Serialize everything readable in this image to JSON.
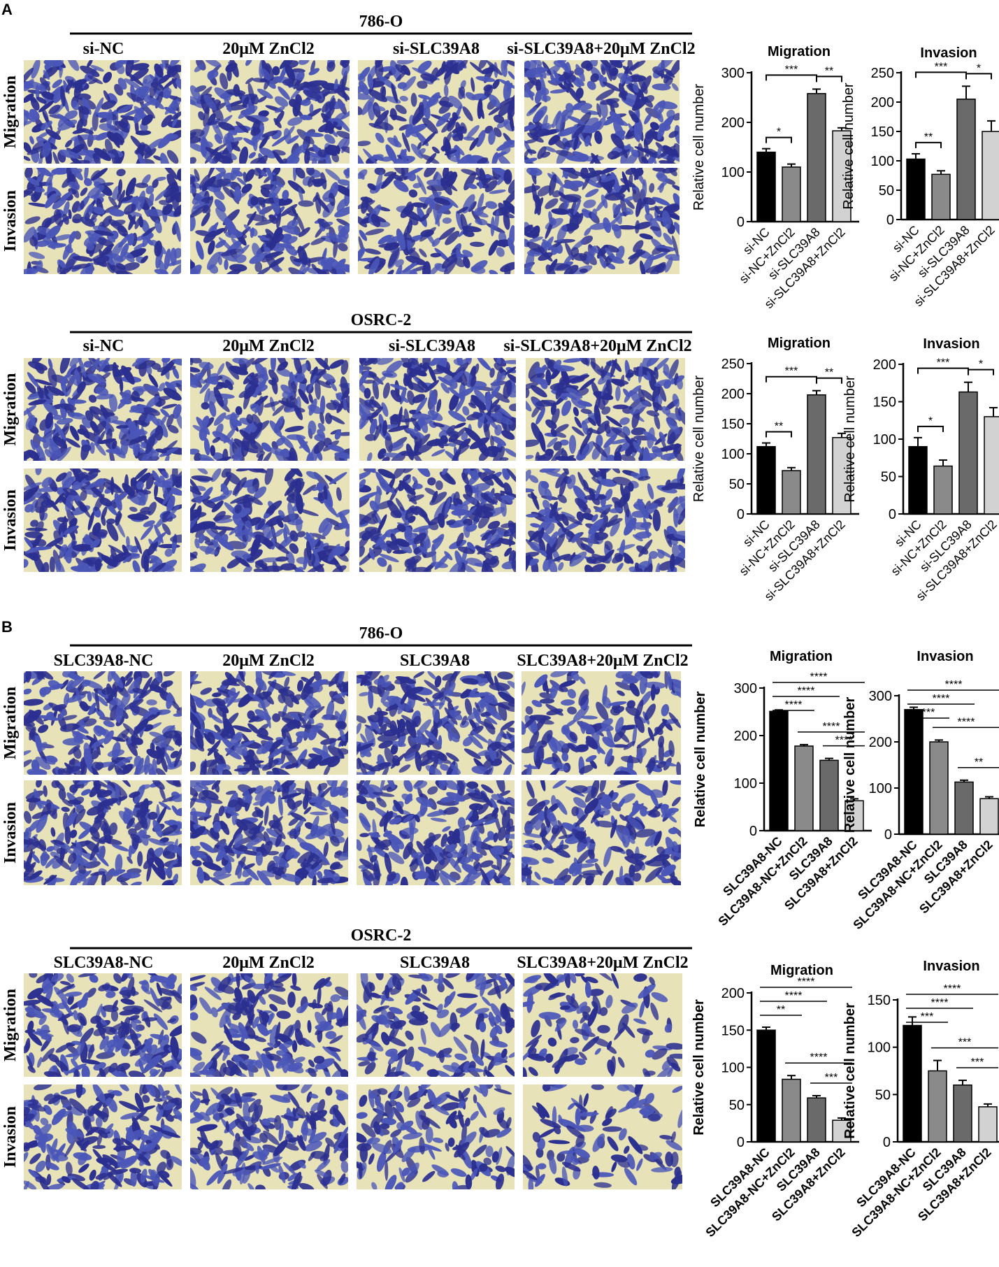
{
  "panel_labels": [
    "A",
    "B"
  ],
  "sections": [
    {
      "cell_line": "786-O",
      "conditions": [
        "si-NC",
        "20μM ZnCl2",
        "si-SLC39A8",
        "si-SLC39A8+20μM ZnCl2"
      ],
      "row_labels": [
        "Migration",
        "Invasion"
      ]
    },
    {
      "cell_line": "OSRC-2",
      "conditions": [
        "si-NC",
        "20μM ZnCl2",
        "si-SLC39A8",
        "si-SLC39A8+20μM ZnCl2"
      ],
      "row_labels": [
        "Migration",
        "Invasion"
      ]
    },
    {
      "cell_line": "786-O",
      "conditions": [
        "SLC39A8-NC",
        "20μM ZnCl2",
        "SLC39A8",
        "SLC39A8+20μM ZnCl2"
      ],
      "row_labels": [
        "Migration",
        "Invasion"
      ]
    },
    {
      "cell_line": "OSRC-2",
      "conditions": [
        "SLC39A8-NC",
        "20μM ZnCl2",
        "SLC39A8",
        "SLC39A8+20μM ZnCl2"
      ],
      "row_labels": [
        "Migration",
        "Invasion"
      ]
    }
  ],
  "colors": {
    "stain_dark": "#2b2f8f",
    "stain_mid": "#4a56b8",
    "membrane": "#e7e2b8",
    "bar_colors": [
      "#000000",
      "#8a8a8a",
      "#6a6a6a",
      "#d2d2d2"
    ]
  },
  "chart_data": [
    {
      "type": "bar",
      "title": "Migration",
      "ylabel": "Relative cell number",
      "ylim": [
        0,
        300
      ],
      "yticks": [
        0,
        100,
        200,
        300
      ],
      "categories": [
        "si-NC",
        "si-NC+ZnCl2",
        "si-SLC39A8",
        "si-SLC39A8+ZnCl2"
      ],
      "values": [
        140,
        110,
        258,
        183
      ],
      "errors": [
        7,
        6,
        9,
        6
      ],
      "significance": [
        {
          "from": 0,
          "to": 1,
          "label": "*"
        },
        {
          "from": 0,
          "to": 2,
          "label": "***"
        },
        {
          "from": 2,
          "to": 3,
          "label": "**"
        }
      ]
    },
    {
      "type": "bar",
      "title": "Invasion",
      "ylabel": "Relative cell number",
      "ylim": [
        0,
        250
      ],
      "yticks": [
        0,
        50,
        100,
        150,
        200,
        250
      ],
      "categories": [
        "si-NC",
        "si-NC+ZnCl2",
        "si-SLC39A8",
        "si-SLC39A8+ZnCl2"
      ],
      "values": [
        103,
        77,
        205,
        150
      ],
      "errors": [
        9,
        6,
        22,
        18
      ],
      "significance": [
        {
          "from": 0,
          "to": 1,
          "label": "**"
        },
        {
          "from": 0,
          "to": 2,
          "label": "***"
        },
        {
          "from": 2,
          "to": 3,
          "label": "*"
        }
      ]
    },
    {
      "type": "bar",
      "title": "Migration",
      "ylabel": "Relative cell number",
      "ylim": [
        0,
        250
      ],
      "yticks": [
        0,
        50,
        100,
        150,
        200,
        250
      ],
      "categories": [
        "si-NC",
        "si-NC+ZnCl2",
        "si-SLC39A8",
        "si-SLC39A8+ZnCl2"
      ],
      "values": [
        112,
        72,
        198,
        127
      ],
      "errors": [
        6,
        5,
        7,
        7
      ],
      "significance": [
        {
          "from": 0,
          "to": 1,
          "label": "**"
        },
        {
          "from": 0,
          "to": 2,
          "label": "***"
        },
        {
          "from": 2,
          "to": 3,
          "label": "**"
        }
      ]
    },
    {
      "type": "bar",
      "title": "Invasion",
      "ylabel": "Relative cell number",
      "ylim": [
        0,
        200
      ],
      "yticks": [
        0,
        50,
        100,
        150,
        200
      ],
      "categories": [
        "si-NC",
        "si-NC+ZnCl2",
        "si-SLC39A8",
        "si-SLC39A8+ZnCl2"
      ],
      "values": [
        90,
        64,
        163,
        130
      ],
      "errors": [
        12,
        8,
        13,
        12
      ],
      "significance": [
        {
          "from": 0,
          "to": 1,
          "label": "*"
        },
        {
          "from": 0,
          "to": 2,
          "label": "***"
        },
        {
          "from": 2,
          "to": 3,
          "label": "*"
        }
      ]
    },
    {
      "type": "bar",
      "title": "Migration",
      "ylabel": "Relative cell number",
      "ylim": [
        0,
        300
      ],
      "yticks": [
        0,
        100,
        200,
        300
      ],
      "categories": [
        "SLC39A8-NC",
        "SLC39A8-NC+ZnCl2",
        "SLC39A8",
        "SLC39A8+ZnCl2"
      ],
      "values": [
        251,
        178,
        148,
        63
      ],
      "errors": [
        3,
        3,
        4,
        4
      ],
      "significance": [
        {
          "from": 0,
          "to": 3,
          "label": "****"
        },
        {
          "from": 0,
          "to": 2,
          "label": "****"
        },
        {
          "from": 0,
          "to": 1,
          "label": "****"
        },
        {
          "from": 1,
          "to": 3,
          "label": "****"
        },
        {
          "from": 2,
          "to": 3,
          "label": "****"
        }
      ]
    },
    {
      "type": "bar",
      "title": "Invasion",
      "ylabel": "Relative cell number",
      "ylim": [
        0,
        300
      ],
      "yticks": [
        0,
        100,
        200,
        300
      ],
      "categories": [
        "SLC39A8-NC",
        "SLC39A8-NC+ZnCl2",
        "SLC39A8",
        "SLC39A8+ZnCl2"
      ],
      "values": [
        270,
        200,
        113,
        77
      ],
      "errors": [
        5,
        4,
        4,
        4
      ],
      "significance": [
        {
          "from": 0,
          "to": 3,
          "label": "****"
        },
        {
          "from": 0,
          "to": 2,
          "label": "****"
        },
        {
          "from": 0,
          "to": 1,
          "label": "***"
        },
        {
          "from": 1,
          "to": 3,
          "label": "****"
        },
        {
          "from": 2,
          "to": 3,
          "label": "**"
        }
      ]
    },
    {
      "type": "bar",
      "title": "Migration",
      "ylabel": "Relative cell number",
      "ylim": [
        0,
        200
      ],
      "yticks": [
        0,
        50,
        100,
        150,
        200
      ],
      "categories": [
        "SLC39A8-NC",
        "SLC39A8-NC+ZnCl2",
        "SLC39A8",
        "SLC39A8+ZnCl2"
      ],
      "values": [
        150,
        84,
        59,
        29
      ],
      "errors": [
        4,
        5,
        3,
        3
      ],
      "significance": [
        {
          "from": 0,
          "to": 3,
          "label": "****"
        },
        {
          "from": 0,
          "to": 2,
          "label": "****"
        },
        {
          "from": 0,
          "to": 1,
          "label": "**"
        },
        {
          "from": 1,
          "to": 3,
          "label": "****"
        },
        {
          "from": 2,
          "to": 3,
          "label": "***"
        }
      ]
    },
    {
      "type": "bar",
      "title": "Invasion",
      "ylabel": "Relative cell number",
      "ylim": [
        0,
        150
      ],
      "yticks": [
        0,
        50,
        100,
        150
      ],
      "categories": [
        "SLC39A8-NC",
        "SLC39A8-NC+ZnCl2",
        "SLC39A8",
        "SLC39A8+ZnCl2"
      ],
      "values": [
        123,
        75,
        60,
        37
      ],
      "errors": [
        9,
        11,
        5,
        3
      ],
      "significance": [
        {
          "from": 0,
          "to": 3,
          "label": "****"
        },
        {
          "from": 0,
          "to": 2,
          "label": "****"
        },
        {
          "from": 0,
          "to": 1,
          "label": "***"
        },
        {
          "from": 1,
          "to": 3,
          "label": "***"
        },
        {
          "from": 2,
          "to": 3,
          "label": "***"
        }
      ]
    }
  ]
}
